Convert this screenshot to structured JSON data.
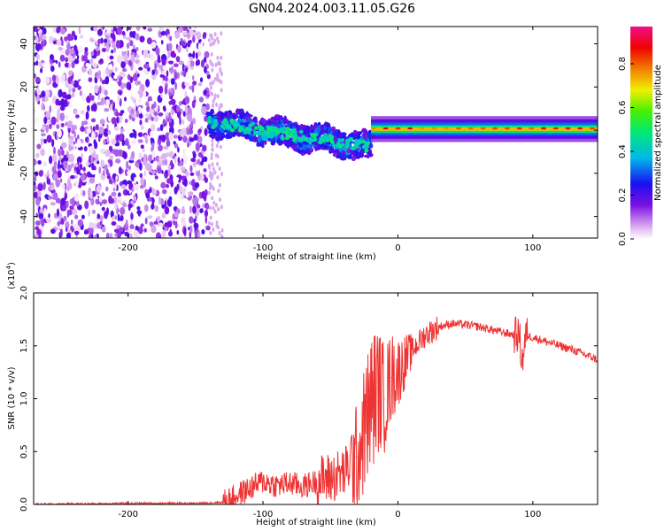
{
  "title": "GN04.2024.003.11.05.G26",
  "chart_data": [
    {
      "type": "heatmap",
      "title": "GN04.2024.003.11.05.G26",
      "xlabel": "Height of straight line (km)",
      "ylabel": "Frequency (Hz)",
      "xlim": [
        -270,
        148
      ],
      "ylim": [
        -50,
        48
      ],
      "xticks": [
        -200,
        -100,
        0,
        100
      ],
      "yticks": [
        -40,
        -20,
        0,
        20,
        40
      ],
      "colorbar": {
        "label": "Normalized spectral amplitude",
        "range": [
          0,
          0.97
        ],
        "ticks": [
          "0.0",
          "0.2",
          "0.4",
          "0.6",
          "0.8"
        ],
        "colormap": "white-purple-blue-cyan-green-yellow-orange-red-magenta"
      },
      "regions": [
        {
          "name": "noise",
          "x_range": [
            -270,
            -140
          ],
          "freq_range": [
            -50,
            48
          ],
          "amplitude": 0.15
        },
        {
          "name": "transition",
          "x_range": [
            -140,
            -20
          ],
          "center_freq": [
            4,
            -8
          ],
          "amplitude": 0.35
        },
        {
          "name": "carrier",
          "x_range": [
            -20,
            148
          ],
          "center_freq": [
            0.5,
            1.5
          ],
          "amplitude": 0.85
        }
      ]
    },
    {
      "type": "line",
      "xlabel": "Height of straight line (km)",
      "ylabel": "SNR (10 * v/v)",
      "yscale_label": "(x10",
      "yscale_exp": "4",
      "yscale_close": ")",
      "xlim": [
        -270,
        148
      ],
      "ylim": [
        0,
        2.0
      ],
      "xticks": [
        -200,
        -100,
        0,
        100
      ],
      "yticks": [
        "0.0",
        "0.5",
        "1.0",
        "1.5",
        "2.0"
      ],
      "series": [
        {
          "name": "SNR",
          "color": "#ee3333",
          "x": [
            -270,
            -200,
            -150,
            -130,
            -120,
            -110,
            -100,
            -90,
            -80,
            -70,
            -60,
            -50,
            -40,
            -30,
            -25,
            -20,
            -15,
            -10,
            -5,
            0,
            10,
            20,
            30,
            40,
            50,
            60,
            70,
            80,
            88,
            90,
            92,
            95,
            100,
            110,
            120,
            130,
            140,
            148
          ],
          "values": [
            0.0,
            0.01,
            0.01,
            0.02,
            0.08,
            0.15,
            0.22,
            0.18,
            0.2,
            0.17,
            0.22,
            0.25,
            0.3,
            0.45,
            0.7,
            0.95,
            1.1,
            1.0,
            1.2,
            1.25,
            1.45,
            1.6,
            1.68,
            1.71,
            1.7,
            1.68,
            1.65,
            1.62,
            1.6,
            1.6,
            1.35,
            1.6,
            1.58,
            1.54,
            1.5,
            1.46,
            1.41,
            1.37
          ]
        }
      ]
    }
  ]
}
